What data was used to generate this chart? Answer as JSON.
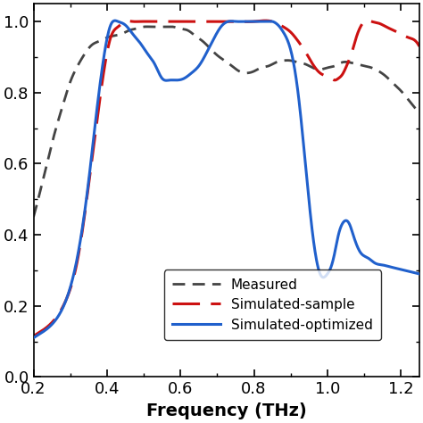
{
  "title": "",
  "xlabel": "Frequency (THz)",
  "ylabel": "",
  "xlim": [
    0.2,
    1.25
  ],
  "ylim": [
    0.0,
    1.05
  ],
  "yticks": [
    0.0,
    0.2,
    0.4,
    0.6,
    0.8,
    1.0
  ],
  "xticks": [
    0.2,
    0.4,
    0.6,
    0.8,
    1.0,
    1.2
  ],
  "legend": [
    {
      "label": "Simulated-optimized",
      "color": "#2060cc",
      "linestyle": "solid",
      "linewidth": 2.2
    },
    {
      "label": "Simulated-sample",
      "color": "#cc1111",
      "linestyle": "dashed",
      "linewidth": 2.2,
      "dashes": [
        10,
        4
      ]
    },
    {
      "label": "Measured",
      "color": "#444444",
      "linestyle": "dashed",
      "linewidth": 2.0,
      "dashes": [
        5,
        3
      ]
    }
  ],
  "blue_x": [
    0.2,
    0.23,
    0.26,
    0.29,
    0.32,
    0.35,
    0.37,
    0.39,
    0.41,
    0.43,
    0.45,
    0.47,
    0.49,
    0.51,
    0.53,
    0.55,
    0.57,
    0.59,
    0.61,
    0.63,
    0.65,
    0.67,
    0.69,
    0.71,
    0.73,
    0.75,
    0.77,
    0.79,
    0.8,
    0.81,
    0.82,
    0.83,
    0.84,
    0.85,
    0.86,
    0.87,
    0.88,
    0.9,
    0.92,
    0.94,
    0.96,
    0.98,
    1.0,
    1.01,
    1.02,
    1.03,
    1.04,
    1.05,
    1.06,
    1.07,
    1.09,
    1.11,
    1.13,
    1.15,
    1.17,
    1.19,
    1.21,
    1.23,
    1.25
  ],
  "blue_y": [
    0.11,
    0.13,
    0.16,
    0.22,
    0.34,
    0.55,
    0.73,
    0.89,
    0.99,
    1.0,
    0.99,
    0.965,
    0.94,
    0.91,
    0.88,
    0.84,
    0.835,
    0.835,
    0.84,
    0.855,
    0.875,
    0.91,
    0.95,
    0.985,
    1.0,
    1.0,
    1.0,
    1.0,
    1.0,
    1.0,
    1.0,
    1.0,
    1.0,
    1.0,
    0.995,
    0.985,
    0.97,
    0.92,
    0.8,
    0.6,
    0.4,
    0.29,
    0.29,
    0.31,
    0.35,
    0.4,
    0.43,
    0.44,
    0.43,
    0.4,
    0.35,
    0.335,
    0.32,
    0.315,
    0.31,
    0.305,
    0.3,
    0.295,
    0.29
  ],
  "red_x": [
    0.2,
    0.23,
    0.26,
    0.29,
    0.32,
    0.35,
    0.37,
    0.39,
    0.41,
    0.43,
    0.45,
    0.47,
    0.49,
    0.51,
    0.53,
    0.55,
    0.6,
    0.65,
    0.7,
    0.75,
    0.8,
    0.85,
    0.88,
    0.9,
    0.92,
    0.94,
    0.96,
    0.98,
    1.0,
    1.01,
    1.02,
    1.03,
    1.04,
    1.05,
    1.06,
    1.07,
    1.08,
    1.09,
    1.1,
    1.12,
    1.14,
    1.16,
    1.18,
    1.2,
    1.22,
    1.24,
    1.25
  ],
  "red_y": [
    0.115,
    0.135,
    0.165,
    0.22,
    0.33,
    0.54,
    0.7,
    0.85,
    0.955,
    0.985,
    1.0,
    1.0,
    1.0,
    1.0,
    1.0,
    1.0,
    1.0,
    1.0,
    1.0,
    1.0,
    1.0,
    1.0,
    0.985,
    0.97,
    0.945,
    0.915,
    0.88,
    0.855,
    0.845,
    0.84,
    0.835,
    0.84,
    0.85,
    0.87,
    0.895,
    0.925,
    0.96,
    0.985,
    1.0,
    1.0,
    0.995,
    0.985,
    0.975,
    0.965,
    0.955,
    0.945,
    0.93
  ],
  "gray_x": [
    0.2,
    0.22,
    0.24,
    0.26,
    0.28,
    0.3,
    0.32,
    0.34,
    0.36,
    0.38,
    0.4,
    0.42,
    0.44,
    0.46,
    0.48,
    0.5,
    0.52,
    0.54,
    0.56,
    0.58,
    0.6,
    0.62,
    0.64,
    0.66,
    0.68,
    0.7,
    0.72,
    0.74,
    0.76,
    0.78,
    0.8,
    0.82,
    0.84,
    0.86,
    0.88,
    0.9,
    0.92,
    0.94,
    0.96,
    0.98,
    1.0,
    1.02,
    1.04,
    1.06,
    1.08,
    1.1,
    1.12,
    1.14,
    1.16,
    1.18,
    1.2,
    1.22,
    1.24
  ],
  "gray_y": [
    0.45,
    0.53,
    0.615,
    0.695,
    0.765,
    0.83,
    0.875,
    0.91,
    0.935,
    0.945,
    0.955,
    0.96,
    0.965,
    0.975,
    0.98,
    0.985,
    0.985,
    0.985,
    0.985,
    0.985,
    0.98,
    0.975,
    0.96,
    0.945,
    0.925,
    0.905,
    0.89,
    0.875,
    0.86,
    0.855,
    0.86,
    0.87,
    0.875,
    0.885,
    0.89,
    0.89,
    0.885,
    0.88,
    0.87,
    0.865,
    0.87,
    0.875,
    0.885,
    0.885,
    0.88,
    0.875,
    0.87,
    0.86,
    0.845,
    0.825,
    0.805,
    0.78,
    0.755
  ]
}
